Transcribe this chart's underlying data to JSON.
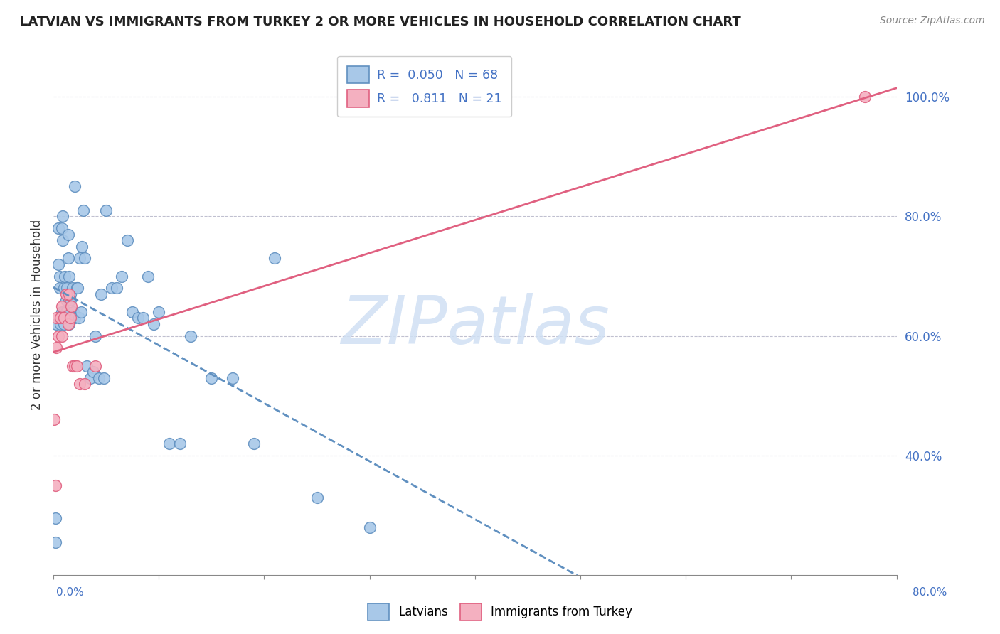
{
  "title": "LATVIAN VS IMMIGRANTS FROM TURKEY 2 OR MORE VEHICLES IN HOUSEHOLD CORRELATION CHART",
  "source": "Source: ZipAtlas.com",
  "ylabel": "2 or more Vehicles in Household",
  "ylabel_right_ticks": [
    "40.0%",
    "60.0%",
    "80.0%",
    "100.0%"
  ],
  "ylabel_right_vals": [
    0.4,
    0.6,
    0.8,
    1.0
  ],
  "legend_latvians": "Latvians",
  "legend_turkey": "Immigrants from Turkey",
  "latvian_R": "0.050",
  "latvian_N": "68",
  "turkey_R": "0.811",
  "turkey_N": "21",
  "latvian_color": "#a8c8e8",
  "turkey_color": "#f4b0c0",
  "latvian_edge_color": "#6090c0",
  "turkey_edge_color": "#e06080",
  "r_n_color": "#4472c4",
  "watermark": "ZIPatlas",
  "watermark_color": "#d0e0f4",
  "xlim": [
    0.0,
    0.8
  ],
  "ylim": [
    0.2,
    1.07
  ],
  "latvian_x": [
    0.002,
    0.002,
    0.003,
    0.005,
    0.005,
    0.006,
    0.006,
    0.007,
    0.008,
    0.008,
    0.009,
    0.009,
    0.01,
    0.01,
    0.01,
    0.011,
    0.011,
    0.012,
    0.012,
    0.013,
    0.013,
    0.014,
    0.014,
    0.015,
    0.015,
    0.015,
    0.016,
    0.016,
    0.017,
    0.018,
    0.019,
    0.02,
    0.02,
    0.022,
    0.023,
    0.024,
    0.025,
    0.026,
    0.027,
    0.028,
    0.03,
    0.032,
    0.035,
    0.038,
    0.04,
    0.043,
    0.045,
    0.048,
    0.05,
    0.055,
    0.06,
    0.065,
    0.07,
    0.075,
    0.08,
    0.085,
    0.09,
    0.095,
    0.1,
    0.11,
    0.12,
    0.13,
    0.15,
    0.17,
    0.19,
    0.21,
    0.25,
    0.3
  ],
  "latvian_y": [
    0.295,
    0.255,
    0.62,
    0.72,
    0.78,
    0.68,
    0.7,
    0.62,
    0.64,
    0.78,
    0.8,
    0.76,
    0.62,
    0.64,
    0.68,
    0.7,
    0.63,
    0.66,
    0.64,
    0.64,
    0.68,
    0.73,
    0.77,
    0.7,
    0.66,
    0.62,
    0.67,
    0.66,
    0.63,
    0.68,
    0.64,
    0.85,
    0.63,
    0.68,
    0.68,
    0.63,
    0.73,
    0.64,
    0.75,
    0.81,
    0.73,
    0.55,
    0.53,
    0.54,
    0.6,
    0.53,
    0.67,
    0.53,
    0.81,
    0.68,
    0.68,
    0.7,
    0.76,
    0.64,
    0.63,
    0.63,
    0.7,
    0.62,
    0.64,
    0.42,
    0.42,
    0.6,
    0.53,
    0.53,
    0.42,
    0.73,
    0.33,
    0.28
  ],
  "turkey_x": [
    0.001,
    0.002,
    0.003,
    0.003,
    0.005,
    0.007,
    0.008,
    0.008,
    0.01,
    0.012,
    0.014,
    0.015,
    0.016,
    0.017,
    0.018,
    0.02,
    0.022,
    0.025,
    0.03,
    0.04,
    0.77
  ],
  "turkey_y": [
    0.46,
    0.35,
    0.58,
    0.63,
    0.6,
    0.63,
    0.6,
    0.65,
    0.63,
    0.67,
    0.62,
    0.67,
    0.63,
    0.65,
    0.55,
    0.55,
    0.55,
    0.52,
    0.52,
    0.55,
    1.0
  ]
}
